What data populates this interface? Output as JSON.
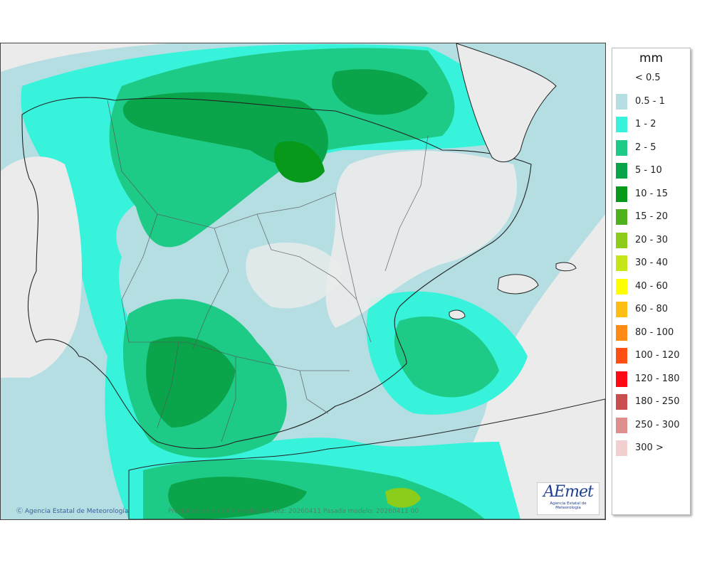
{
  "map": {
    "credit": "Agencia Estatal de Meteorología",
    "footer_note": "Precipitación en 24 h media. Validez: 20260411 Pasada modelo: 20260411 00",
    "logo_text": "AEmet",
    "logo_subtitle": "Agencia Estatal de Meteorología"
  },
  "legend": {
    "unit": "mm",
    "entries": [
      {
        "label": "< 0.5",
        "color": "#ffffff"
      },
      {
        "label": "0.5 - 1",
        "color": "#b4dee2"
      },
      {
        "label": "1 - 2",
        "color": "#37f3db"
      },
      {
        "label": "2 - 5",
        "color": "#1ecb86"
      },
      {
        "label": "5 - 10",
        "color": "#0aa54a"
      },
      {
        "label": "10 - 15",
        "color": "#079a1a"
      },
      {
        "label": "15 - 20",
        "color": "#4fb11b"
      },
      {
        "label": "20 - 30",
        "color": "#8ccc1a"
      },
      {
        "label": "30 - 40",
        "color": "#c7e619"
      },
      {
        "label": "40 - 60",
        "color": "#ffff00"
      },
      {
        "label": "60 - 80",
        "color": "#ffbe14"
      },
      {
        "label": "80 - 100",
        "color": "#ff8a14"
      },
      {
        "label": "100 - 120",
        "color": "#ff4f14"
      },
      {
        "label": "120 - 180",
        "color": "#ff0a14"
      },
      {
        "label": "180 - 250",
        "color": "#c94f4f"
      },
      {
        "label": "250 - 300",
        "color": "#df8e8e"
      },
      {
        "label": "300 >",
        "color": "#f3d0d0"
      }
    ]
  }
}
